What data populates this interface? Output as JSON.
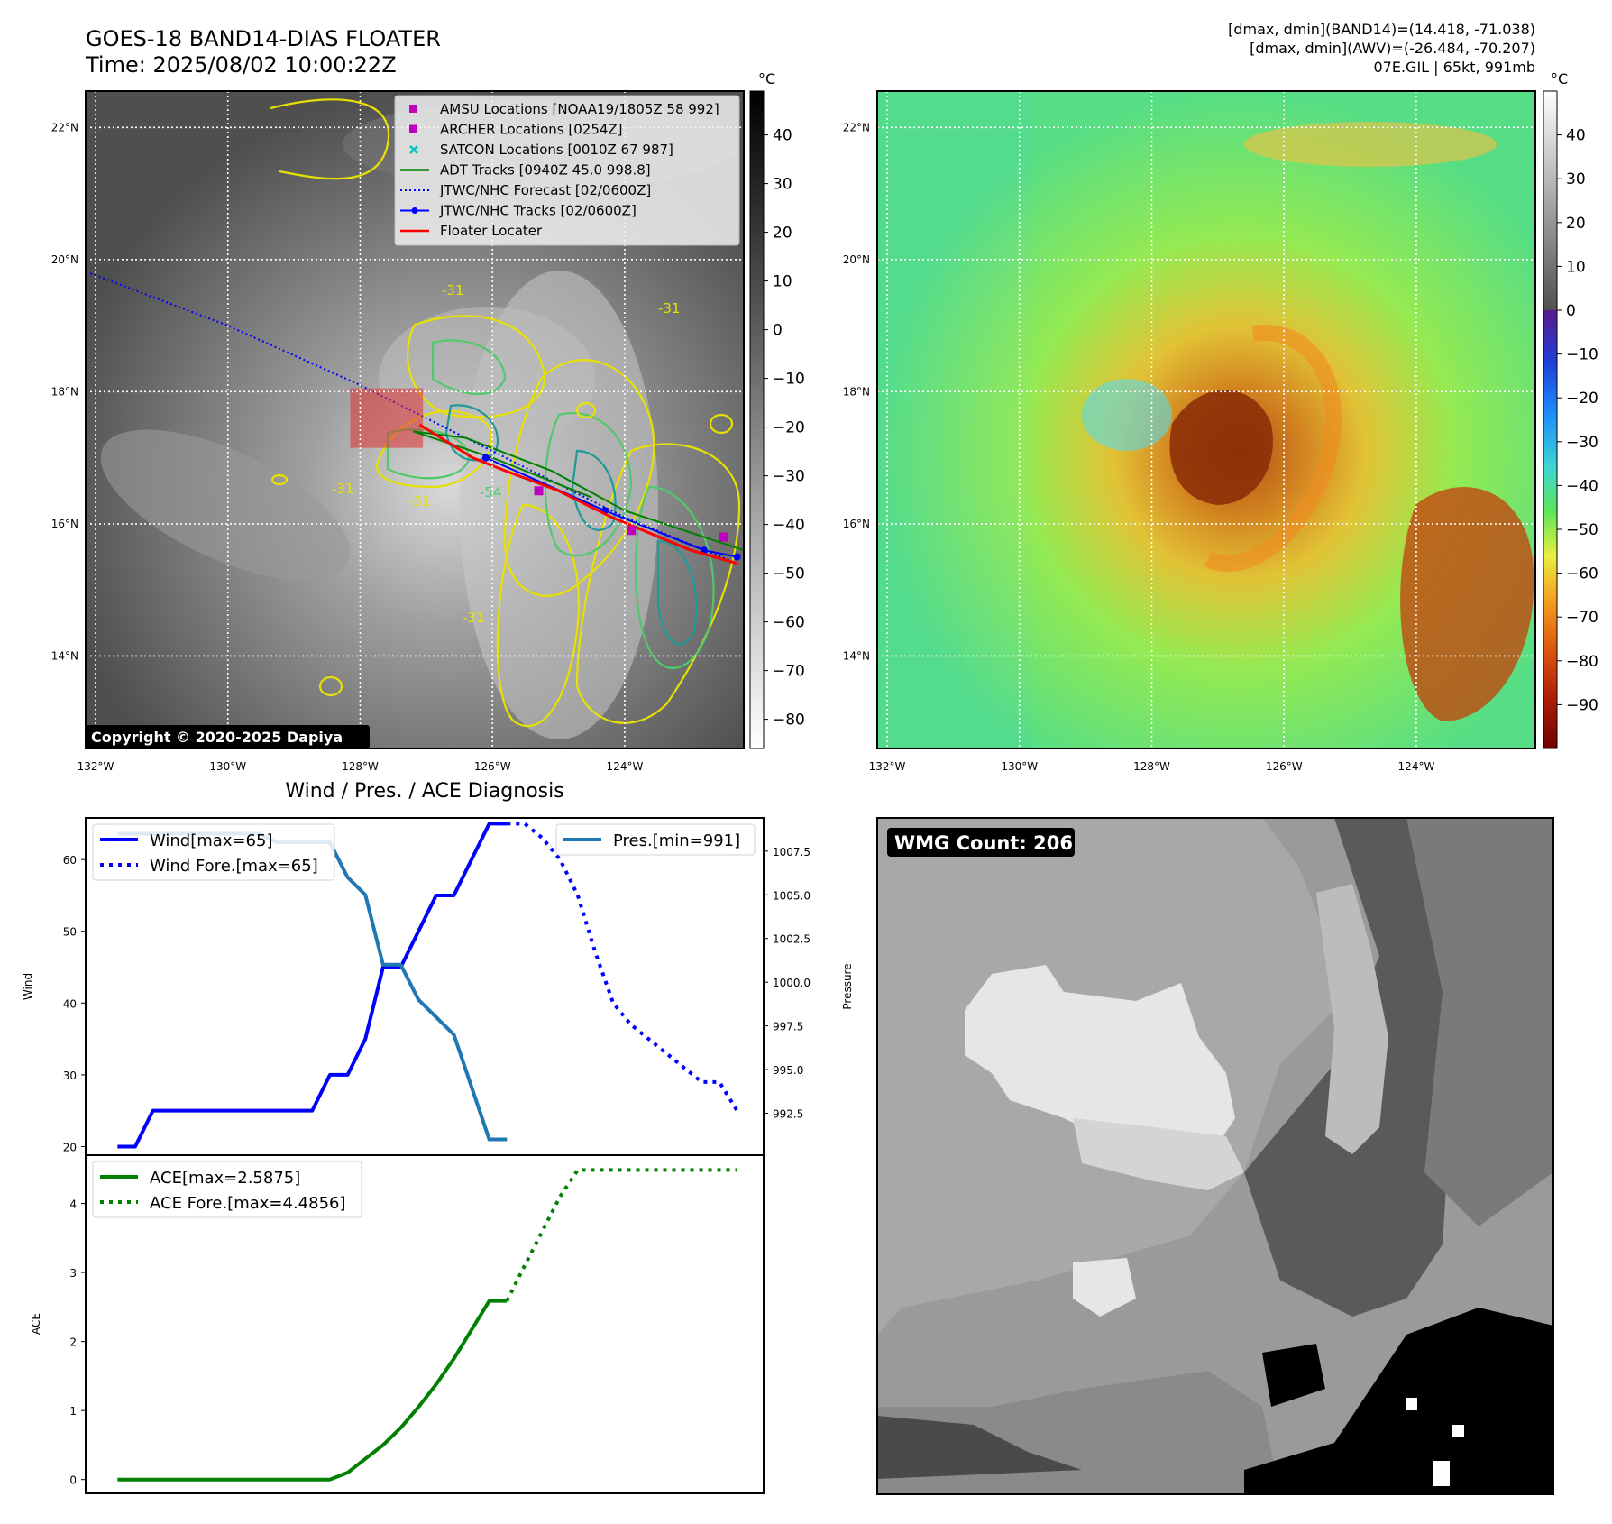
{
  "header": {
    "title": "GOES-18 BAND14-DIAS FLOATER",
    "time": "Time: 2025/08/02 10:00:22Z",
    "stats_band14": "[dmax, dmin](BAND14)=(14.418, -71.038)",
    "stats_awv": "[dmax, dmin](AWV)=(-26.484, -70.207)",
    "storm": "07E.GIL | 65kt, 991mb"
  },
  "map_axes": {
    "lon_ticks": [
      "132°W",
      "130°W",
      "128°W",
      "126°W",
      "124°W"
    ],
    "lat_ticks": [
      "22°N",
      "20°N",
      "18°N",
      "16°N",
      "14°N"
    ],
    "lon_values": [
      -132,
      -130,
      -128,
      -126,
      -124
    ],
    "lat_values": [
      22,
      20,
      18,
      16,
      14
    ],
    "lon_range": [
      -132.15,
      -122.2
    ],
    "lat_range": [
      12.6,
      22.55
    ]
  },
  "ir_panel": {
    "unit": "°C",
    "colorbar_ticks": [
      "40",
      "30",
      "20",
      "10",
      "0",
      "−10",
      "−20",
      "−30",
      "−40",
      "−50",
      "−60",
      "−70",
      "−80"
    ],
    "colorbar_values": [
      40,
      30,
      20,
      10,
      0,
      -10,
      -20,
      -30,
      -40,
      -50,
      -60,
      -70,
      -80
    ],
    "colorbar_range": [
      49,
      -86
    ],
    "copyright": "Copyright © 2020-2025 Dapiya",
    "contour_labels": [
      "-31",
      "-31",
      "-54",
      "-31",
      "-31",
      "-31"
    ],
    "legend": [
      {
        "label": "AMSU Locations [NOAA19/1805Z 58 992]",
        "color": "#bf00bf",
        "style": "square"
      },
      {
        "label": "ARCHER Locations [0254Z]",
        "color": "#bf00bf",
        "style": "square"
      },
      {
        "label": "SATCON Locations [0010Z 67 987]",
        "color": "#00bfbf",
        "style": "x"
      },
      {
        "label": "ADT Tracks [0940Z 45.0 998.8]",
        "color": "#008000",
        "style": "line"
      },
      {
        "label": "JTWC/NHC Forecast [02/0600Z]",
        "color": "#0000ff",
        "style": "dotted"
      },
      {
        "label": "JTWC/NHC Tracks [02/0600Z]",
        "color": "#0000ff",
        "style": "line-dot"
      },
      {
        "label": "Floater Locater",
        "color": "#ff0000",
        "style": "line"
      }
    ]
  },
  "awv_panel": {
    "unit": "°C",
    "colorbar_ticks": [
      "40",
      "30",
      "20",
      "10",
      "0",
      "−10",
      "−20",
      "−30",
      "−40",
      "−50",
      "−60",
      "−70",
      "−80",
      "−90"
    ],
    "colorbar_values": [
      40,
      30,
      20,
      10,
      0,
      -10,
      -20,
      -30,
      -40,
      -50,
      -60,
      -70,
      -80,
      -90
    ],
    "colorbar_range": [
      50,
      -100
    ]
  },
  "wmg_panel": {
    "label": "WMG Count: 206"
  },
  "chart_data": [
    {
      "type": "line",
      "title": "Wind / Pres. / ACE Diagnosis",
      "ylabel": "Wind",
      "ylabel_right": "Pressure",
      "ylim": [
        18.8,
        65.8
      ],
      "ylim_right": [
        990.1,
        1009.4
      ],
      "yticks": [
        "20",
        "30",
        "40",
        "50",
        "60"
      ],
      "ytick_values": [
        20,
        30,
        40,
        50,
        60
      ],
      "yticks_right": [
        "992.5",
        "995.0",
        "997.5",
        "1000.0",
        "1002.5",
        "1005.0",
        "1007.5"
      ],
      "ytick_values_right": [
        992.5,
        995.0,
        997.5,
        1000.0,
        1002.5,
        1005.0,
        1007.5
      ],
      "xlim": [
        -1.8,
        36.5
      ],
      "series": [
        {
          "name": "Wind[max=65]",
          "color": "#0000ff",
          "style": "solid",
          "x": [
            0,
            1,
            2,
            3,
            4,
            5,
            6,
            7,
            8,
            9,
            10,
            11,
            12,
            13,
            14,
            15,
            16,
            17,
            18,
            19,
            20,
            21,
            22
          ],
          "values": [
            20,
            20,
            25,
            25,
            25,
            25,
            25,
            25,
            25,
            25,
            25,
            25,
            30,
            30,
            35,
            45,
            45,
            50,
            55,
            55,
            60,
            65,
            65
          ]
        },
        {
          "name": "Wind Fore.[max=65]",
          "color": "#0000ff",
          "style": "dotted",
          "x": [
            22,
            23,
            24,
            25,
            26,
            27,
            28,
            29,
            30,
            31,
            32,
            33,
            34,
            35
          ],
          "values": [
            65,
            65,
            63,
            60,
            55,
            47,
            40,
            37,
            35,
            33,
            31,
            29,
            29,
            25
          ]
        },
        {
          "name": "Pres.[min=991]",
          "color": "#1f77b4",
          "style": "solid",
          "axis": "right",
          "x": [
            0,
            1,
            2,
            3,
            4,
            5,
            6,
            7,
            8,
            9,
            10,
            11,
            12,
            13,
            14,
            15,
            16,
            17,
            18,
            19,
            20,
            21,
            22
          ],
          "values": [
            1008.5,
            1008.5,
            1008.5,
            1008.5,
            1008.5,
            1008.5,
            1008.5,
            1008.5,
            1008.5,
            1008.0,
            1008.0,
            1008.0,
            1008.0,
            1006.0,
            1005.0,
            1001.0,
            1001.0,
            999.0,
            998.0,
            997.0,
            994.0,
            991.0,
            991.0
          ]
        }
      ]
    },
    {
      "type": "line",
      "ylabel": "ACE",
      "ylim": [
        -0.2,
        4.7
      ],
      "yticks": [
        "0",
        "1",
        "2",
        "3",
        "4"
      ],
      "ytick_values": [
        0,
        1,
        2,
        3,
        4
      ],
      "xlim": [
        -1.8,
        36.5
      ],
      "series": [
        {
          "name": "ACE[max=2.5875]",
          "color": "#008000",
          "style": "solid",
          "x": [
            0,
            1,
            2,
            3,
            4,
            5,
            6,
            7,
            8,
            9,
            10,
            11,
            12,
            13,
            14,
            15,
            16,
            17,
            18,
            19,
            20,
            21,
            22
          ],
          "values": [
            0,
            0,
            0,
            0,
            0,
            0,
            0,
            0,
            0,
            0,
            0,
            0,
            0,
            0.1,
            0.3,
            0.5,
            0.75,
            1.05,
            1.38,
            1.75,
            2.17,
            2.5875,
            2.5875
          ]
        },
        {
          "name": "ACE Fore.[max=4.4856]",
          "color": "#008000",
          "style": "dotted",
          "x": [
            22,
            23,
            24,
            25,
            26,
            27,
            28,
            29,
            30,
            31,
            32,
            33,
            34,
            35
          ],
          "values": [
            2.5875,
            3.1,
            3.6,
            4.1,
            4.4856,
            4.4856,
            4.4856,
            4.4856,
            4.4856,
            4.4856,
            4.4856,
            4.4856,
            4.4856,
            4.4856
          ]
        }
      ]
    }
  ]
}
